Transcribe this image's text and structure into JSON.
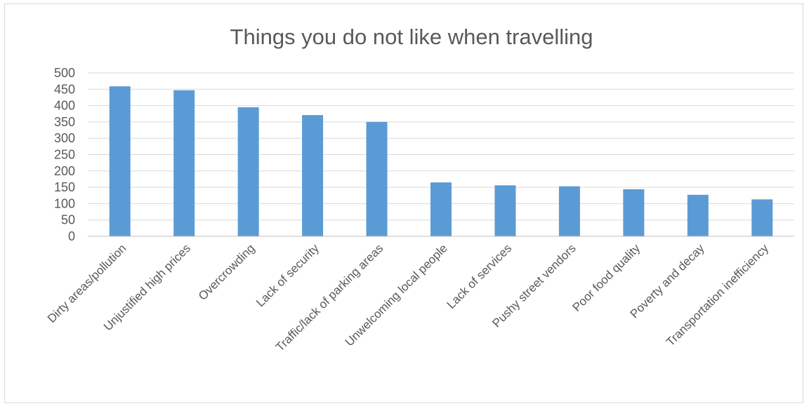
{
  "chart_data": {
    "type": "bar",
    "title": "Things you do not like when travelling",
    "xlabel": "",
    "ylabel": "",
    "ylim": [
      0,
      500
    ],
    "ytick_step": 50,
    "grid": true,
    "legend": "none",
    "bar_color": "#5b9bd5",
    "categories": [
      "Dirty areas/pollution",
      "Unjustified high prices",
      "Overcrowding",
      "Lack of security",
      "Traffic/lack of parking areas",
      "Unwelcoming local people",
      "Lack of services",
      "Pushy street vendors",
      "Poor food quality",
      "Poverty and decay",
      "Transportation inefficiency"
    ],
    "values": [
      459,
      447,
      395,
      371,
      350,
      165,
      156,
      153,
      144,
      127,
      113
    ]
  }
}
